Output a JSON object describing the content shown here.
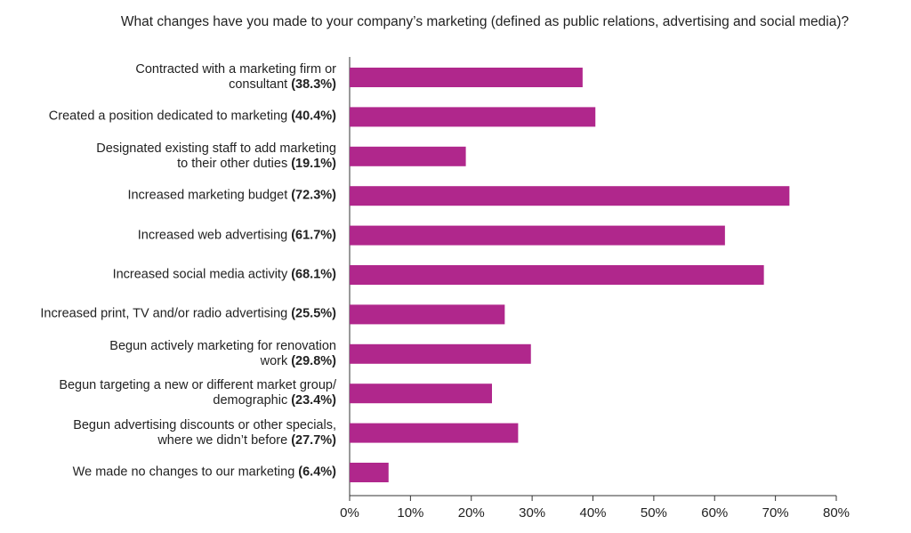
{
  "chart_data": {
    "type": "bar",
    "orientation": "horizontal",
    "title": "What changes have you made to your company’s marketing (defined as public relations, advertising and social media)?",
    "categories": [
      "Contracted with a marketing firm or\nconsultant",
      "Created a position dedicated to marketing",
      "Designated existing staff to add marketing\nto their other duties",
      "Increased marketing budget",
      "Increased web advertising",
      "Increased social media activity",
      "Increased print, TV and/or radio advertising",
      "Begun actively marketing for renovation\nwork",
      "Begun targeting a new or different market group/\ndemographic",
      "Begun advertising discounts or other specials,\nwhere we didn’t before",
      "We made no changes to our marketing"
    ],
    "values": [
      38.3,
      40.4,
      19.1,
      72.3,
      61.7,
      68.1,
      25.5,
      29.8,
      23.4,
      27.7,
      6.4
    ],
    "value_labels": [
      "(38.3%)",
      "(40.4%)",
      "(19.1%)",
      "(72.3%)",
      "(61.7%)",
      "(68.1%)",
      "(25.5%)",
      "(29.8%)",
      "(23.4%)",
      "(27.7%)",
      "(6.4%)"
    ],
    "color": "#b0278c",
    "xlim": [
      0,
      80
    ],
    "xticks": [
      {
        "value": 0,
        "label": "0%"
      },
      {
        "value": 10,
        "label": "10%"
      },
      {
        "value": 20,
        "label": "20%"
      },
      {
        "value": 30,
        "label": "30%"
      },
      {
        "value": 40,
        "label": "40%"
      },
      {
        "value": 50,
        "label": "50%"
      },
      {
        "value": 60,
        "label": "60%"
      },
      {
        "value": 70,
        "label": "70%"
      },
      {
        "value": 80,
        "label": "80%"
      }
    ],
    "grid": false
  }
}
